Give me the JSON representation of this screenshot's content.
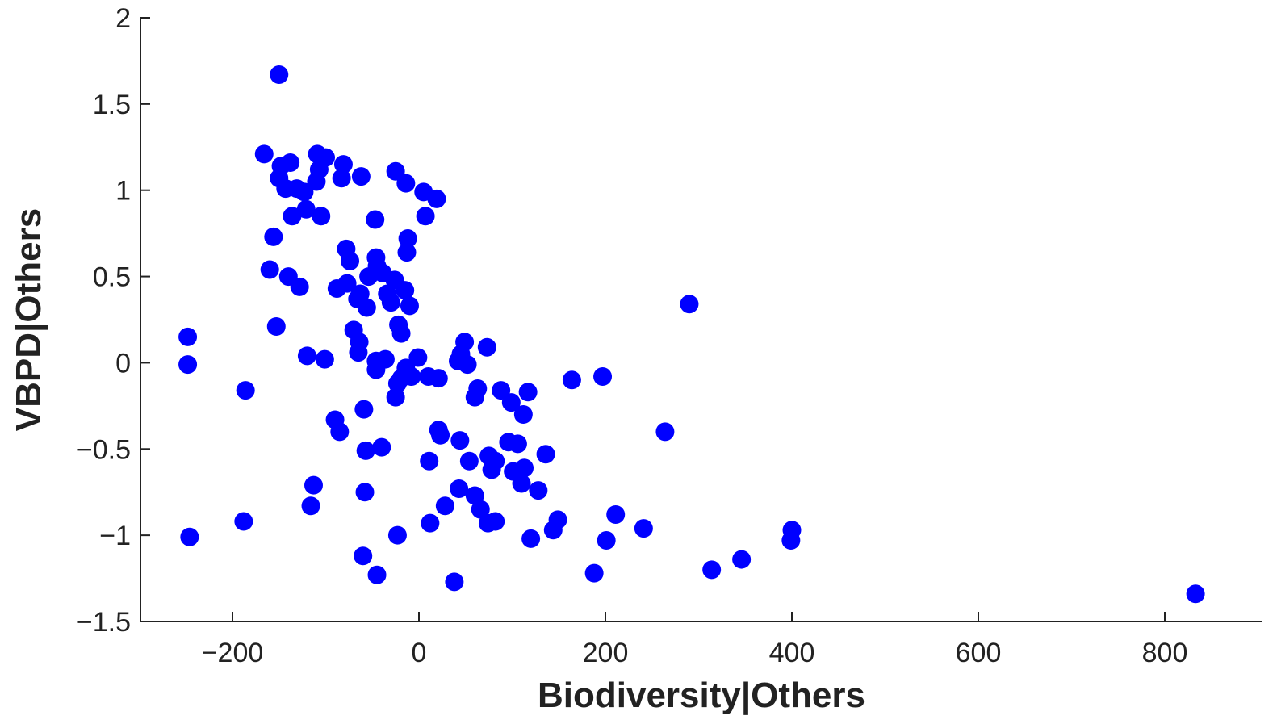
{
  "chart_data": {
    "type": "scatter",
    "xlabel": "Biodiversity|Others",
    "ylabel": "VBPD|Others",
    "xlim": [
      -300,
      900
    ],
    "ylim": [
      -1.5,
      2
    ],
    "x_ticks": [
      -200,
      0,
      200,
      400,
      600,
      800
    ],
    "x_tick_labels": [
      "−200",
      "0",
      "200",
      "400",
      "600",
      "800"
    ],
    "y_ticks": [
      -1.5,
      -1,
      -0.5,
      0,
      0.5,
      1,
      1.5,
      2
    ],
    "y_tick_labels": [
      "−1.5",
      "−1",
      "−0.5",
      "0",
      "0.5",
      "1",
      "1.5",
      "2"
    ],
    "grid": false,
    "legend": "none",
    "colors": {
      "points": "#0000ff",
      "axes": "#222222"
    },
    "series": [
      {
        "points": [
          [
            -150,
            1.67
          ],
          [
            -166,
            1.21
          ],
          [
            -148,
            1.14
          ],
          [
            -138,
            1.16
          ],
          [
            -150,
            1.07
          ],
          [
            -143,
            1.01
          ],
          [
            -131,
            1.01
          ],
          [
            -123,
            0.99
          ],
          [
            -109,
            1.21
          ],
          [
            -100,
            1.19
          ],
          [
            -107,
            1.12
          ],
          [
            -110,
            1.05
          ],
          [
            -81,
            1.15
          ],
          [
            -83,
            1.07
          ],
          [
            -62,
            1.08
          ],
          [
            -136,
            0.85
          ],
          [
            -121,
            0.89
          ],
          [
            -105,
            0.85
          ],
          [
            -156,
            0.73
          ],
          [
            -160,
            0.54
          ],
          [
            -140,
            0.5
          ],
          [
            -128,
            0.44
          ],
          [
            -153,
            0.21
          ],
          [
            -248,
            0.15
          ],
          [
            -248,
            -0.01
          ],
          [
            -120,
            0.04
          ],
          [
            -101,
            0.02
          ],
          [
            -186,
            -0.16
          ],
          [
            -188,
            -0.92
          ],
          [
            -246,
            -1.01
          ],
          [
            -90,
            -0.33
          ],
          [
            -85,
            -0.4
          ],
          [
            -113,
            -0.71
          ],
          [
            -116,
            -0.83
          ],
          [
            -59,
            -0.27
          ],
          [
            -57,
            -0.51
          ],
          [
            -40,
            -0.49
          ],
          [
            -58,
            -0.75
          ],
          [
            -60,
            -1.12
          ],
          [
            -45,
            -1.23
          ],
          [
            -23,
            -1.0
          ],
          [
            -78,
            0.66
          ],
          [
            -74,
            0.59
          ],
          [
            -88,
            0.43
          ],
          [
            -77,
            0.46
          ],
          [
            -63,
            0.4
          ],
          [
            -66,
            0.37
          ],
          [
            -56,
            0.32
          ],
          [
            -54,
            0.5
          ],
          [
            -46,
            0.61
          ],
          [
            -45,
            0.56
          ],
          [
            -39,
            0.52
          ],
          [
            -34,
            0.4
          ],
          [
            -30,
            0.35
          ],
          [
            -26,
            0.48
          ],
          [
            -15,
            0.42
          ],
          [
            -10,
            0.33
          ],
          [
            -70,
            0.19
          ],
          [
            -64,
            0.12
          ],
          [
            -65,
            0.06
          ],
          [
            -46,
            0.01
          ],
          [
            -36,
            0.02
          ],
          [
            -46,
            -0.04
          ],
          [
            -22,
            0.22
          ],
          [
            -19,
            0.17
          ],
          [
            -47,
            0.83
          ],
          [
            -25,
            1.11
          ],
          [
            -14,
            1.04
          ],
          [
            5,
            0.99
          ],
          [
            19,
            0.95
          ],
          [
            7,
            0.85
          ],
          [
            -12,
            0.72
          ],
          [
            -13,
            0.64
          ],
          [
            -1,
            0.03
          ],
          [
            -14,
            -0.03
          ],
          [
            -19,
            -0.09
          ],
          [
            -23,
            -0.12
          ],
          [
            -8,
            -0.08
          ],
          [
            -25,
            -0.2
          ],
          [
            10,
            -0.08
          ],
          [
            21,
            -0.09
          ],
          [
            42,
            0.01
          ],
          [
            45,
            0.05
          ],
          [
            49,
            0.12
          ],
          [
            52,
            -0.01
          ],
          [
            73,
            0.09
          ],
          [
            63,
            -0.15
          ],
          [
            60,
            -0.2
          ],
          [
            88,
            -0.16
          ],
          [
            99,
            -0.23
          ],
          [
            112,
            -0.3
          ],
          [
            117,
            -0.17
          ],
          [
            164,
            -0.1
          ],
          [
            197,
            -0.08
          ],
          [
            21,
            -0.39
          ],
          [
            23,
            -0.42
          ],
          [
            44,
            -0.45
          ],
          [
            54,
            -0.57
          ],
          [
            11,
            -0.57
          ],
          [
            75,
            -0.54
          ],
          [
            82,
            -0.57
          ],
          [
            78,
            -0.62
          ],
          [
            96,
            -0.46
          ],
          [
            106,
            -0.47
          ],
          [
            101,
            -0.63
          ],
          [
            113,
            -0.61
          ],
          [
            110,
            -0.7
          ],
          [
            128,
            -0.74
          ],
          [
            136,
            -0.53
          ],
          [
            43,
            -0.73
          ],
          [
            60,
            -0.77
          ],
          [
            66,
            -0.85
          ],
          [
            28,
            -0.83
          ],
          [
            12,
            -0.93
          ],
          [
            74,
            -0.93
          ],
          [
            82,
            -0.92
          ],
          [
            38,
            -1.27
          ],
          [
            120,
            -1.02
          ],
          [
            144,
            -0.97
          ],
          [
            149,
            -0.91
          ],
          [
            211,
            -0.88
          ],
          [
            241,
            -0.96
          ],
          [
            201,
            -1.03
          ],
          [
            188,
            -1.22
          ],
          [
            264,
            -0.4
          ],
          [
            290,
            0.34
          ],
          [
            314,
            -1.2
          ],
          [
            346,
            -1.14
          ],
          [
            400,
            -0.97
          ],
          [
            399,
            -1.03
          ],
          [
            833,
            -1.34
          ]
        ]
      }
    ]
  }
}
